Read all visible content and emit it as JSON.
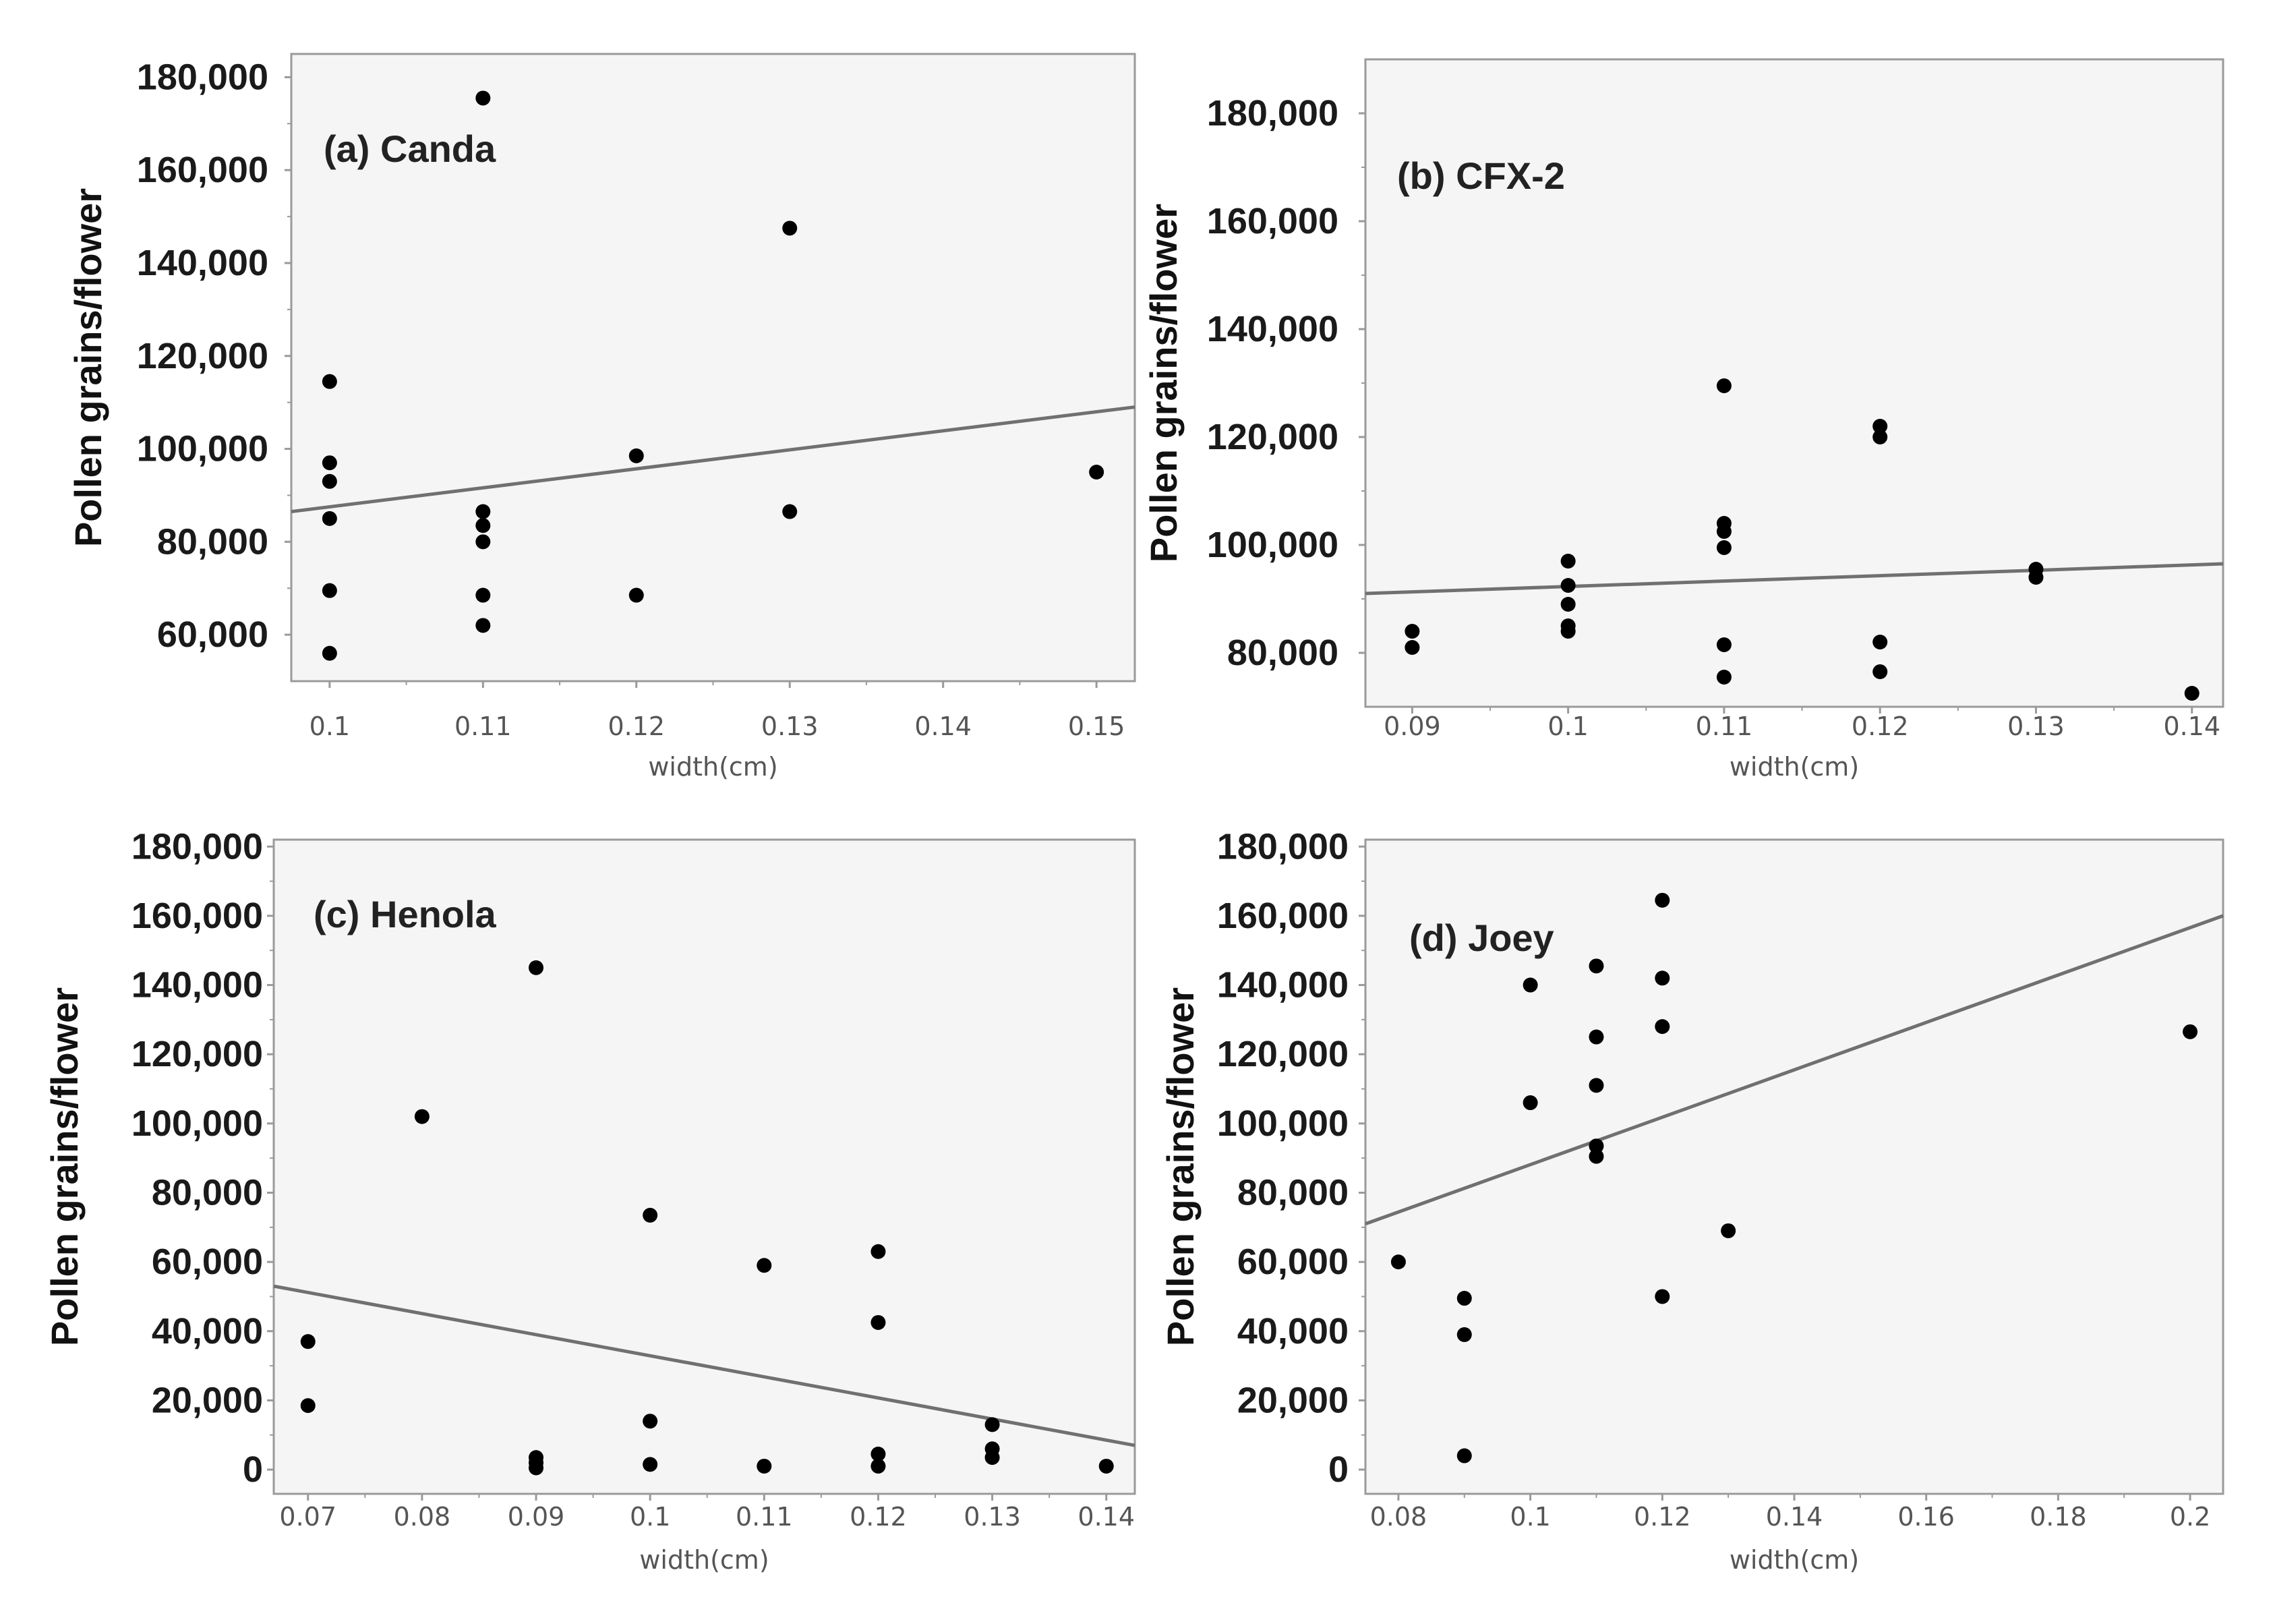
{
  "figure": {
    "background": "#ffffff",
    "panel_background": "#f5f5f5",
    "frame_color": "#9a9a9a",
    "point_color": "#000000",
    "fit_line_color": "#707070"
  },
  "chart_data": [
    {
      "type": "scatter",
      "title": "(a) Canda",
      "xlabel": "width(cm)",
      "ylabel": "Pollen grains/flower",
      "xlim": [
        0.0975,
        0.1525
      ],
      "ylim": [
        50000,
        185000
      ],
      "x_ticks": [
        0.1,
        0.11,
        0.12,
        0.13,
        0.14,
        0.15
      ],
      "x_tick_labels": [
        "0.1",
        "0.11",
        "0.12",
        "0.13",
        "0.14",
        "0.15"
      ],
      "y_ticks": [
        60000,
        80000,
        100000,
        120000,
        140000,
        160000,
        180000
      ],
      "y_tick_labels": [
        "60,000",
        "80,000",
        "100,000",
        "120,000",
        "140,000",
        "160,000",
        "180,000"
      ],
      "points": [
        [
          0.1,
          114500
        ],
        [
          0.1,
          97000
        ],
        [
          0.1,
          93000
        ],
        [
          0.1,
          85000
        ],
        [
          0.1,
          69500
        ],
        [
          0.1,
          56000
        ],
        [
          0.11,
          175500
        ],
        [
          0.11,
          86500
        ],
        [
          0.11,
          83500
        ],
        [
          0.11,
          80000
        ],
        [
          0.11,
          68500
        ],
        [
          0.11,
          62000
        ],
        [
          0.12,
          98500
        ],
        [
          0.12,
          68500
        ],
        [
          0.13,
          147500
        ],
        [
          0.13,
          86500
        ],
        [
          0.15,
          95000
        ]
      ],
      "fit_line": [
        [
          0.0975,
          86500
        ],
        [
          0.1525,
          109000
        ]
      ]
    },
    {
      "type": "scatter",
      "title": "(b) CFX-2",
      "xlabel": "width(cm)",
      "ylabel": "Pollen grains/flower",
      "xlim": [
        0.087,
        0.142
      ],
      "ylim": [
        70000,
        190000
      ],
      "x_ticks": [
        0.09,
        0.1,
        0.11,
        0.12,
        0.13,
        0.14
      ],
      "x_tick_labels": [
        "0.09",
        "0.1",
        "0.11",
        "0.12",
        "0.13",
        "0.14"
      ],
      "y_ticks": [
        80000,
        100000,
        120000,
        140000,
        160000,
        180000
      ],
      "y_tick_labels": [
        "80,000",
        "100,000",
        "120,000",
        "140,000",
        "160,000",
        "180,000"
      ],
      "points": [
        [
          0.09,
          84000
        ],
        [
          0.09,
          81000
        ],
        [
          0.1,
          97000
        ],
        [
          0.1,
          92500
        ],
        [
          0.1,
          89000
        ],
        [
          0.1,
          85000
        ],
        [
          0.1,
          84000
        ],
        [
          0.11,
          129500
        ],
        [
          0.11,
          104000
        ],
        [
          0.11,
          102500
        ],
        [
          0.11,
          99500
        ],
        [
          0.11,
          81500
        ],
        [
          0.11,
          75500
        ],
        [
          0.12,
          122000
        ],
        [
          0.12,
          120000
        ],
        [
          0.12,
          82000
        ],
        [
          0.12,
          76500
        ],
        [
          0.13,
          95500
        ],
        [
          0.13,
          94000
        ],
        [
          0.14,
          72500
        ]
      ],
      "fit_line": [
        [
          0.087,
          91000
        ],
        [
          0.142,
          96500
        ]
      ]
    },
    {
      "type": "scatter",
      "title": "(c) Henola",
      "xlabel": "width(cm)",
      "ylabel": "Pollen grains/flower",
      "xlim": [
        0.067,
        0.1425
      ],
      "ylim": [
        -7000,
        182000
      ],
      "x_ticks": [
        0.07,
        0.08,
        0.09,
        0.1,
        0.11,
        0.12,
        0.13,
        0.14
      ],
      "x_tick_labels": [
        "0.07",
        "0.08",
        "0.09",
        "0.1",
        "0.11",
        "0.12",
        "0.13",
        "0.14"
      ],
      "y_ticks": [
        0,
        20000,
        40000,
        60000,
        80000,
        100000,
        120000,
        140000,
        160000,
        180000
      ],
      "y_tick_labels": [
        "0",
        "20,000",
        "40,000",
        "60,000",
        "80,000",
        "100,000",
        "120,000",
        "140,000",
        "160,000",
        "180,000"
      ],
      "points": [
        [
          0.07,
          37000
        ],
        [
          0.07,
          18500
        ],
        [
          0.08,
          102000
        ],
        [
          0.09,
          145000
        ],
        [
          0.09,
          3500
        ],
        [
          0.09,
          2000
        ],
        [
          0.09,
          500
        ],
        [
          0.1,
          73500
        ],
        [
          0.1,
          14000
        ],
        [
          0.1,
          1500
        ],
        [
          0.11,
          59000
        ],
        [
          0.11,
          1000
        ],
        [
          0.12,
          63000
        ],
        [
          0.12,
          42500
        ],
        [
          0.12,
          4500
        ],
        [
          0.12,
          1000
        ],
        [
          0.13,
          13000
        ],
        [
          0.13,
          6000
        ],
        [
          0.13,
          3500
        ],
        [
          0.14,
          1000
        ]
      ],
      "fit_line": [
        [
          0.067,
          53000
        ],
        [
          0.1425,
          7000
        ]
      ]
    },
    {
      "type": "scatter",
      "title": "(d) Joey",
      "xlabel": "width(cm)",
      "ylabel": "Pollen grains/flower",
      "xlim": [
        0.075,
        0.205
      ],
      "ylim": [
        -7000,
        182000
      ],
      "x_ticks": [
        0.08,
        0.1,
        0.12,
        0.14,
        0.16,
        0.18,
        0.2
      ],
      "x_tick_labels": [
        "0.08",
        "0.1",
        "0.12",
        "0.14",
        "0.16",
        "0.18",
        "0.2"
      ],
      "y_ticks": [
        0,
        20000,
        40000,
        60000,
        80000,
        100000,
        120000,
        140000,
        160000,
        180000
      ],
      "y_tick_labels": [
        "0",
        "20,000",
        "40,000",
        "60,000",
        "80,000",
        "100,000",
        "120,000",
        "140,000",
        "160,000",
        "180,000"
      ],
      "points": [
        [
          0.08,
          60000
        ],
        [
          0.09,
          49500
        ],
        [
          0.09,
          39000
        ],
        [
          0.09,
          4000
        ],
        [
          0.1,
          140000
        ],
        [
          0.1,
          106000
        ],
        [
          0.11,
          145500
        ],
        [
          0.11,
          125000
        ],
        [
          0.11,
          111000
        ],
        [
          0.11,
          93500
        ],
        [
          0.11,
          90500
        ],
        [
          0.12,
          164500
        ],
        [
          0.12,
          142000
        ],
        [
          0.12,
          128000
        ],
        [
          0.12,
          50000
        ],
        [
          0.13,
          69000
        ],
        [
          0.2,
          126500
        ]
      ],
      "fit_line": [
        [
          0.075,
          71000
        ],
        [
          0.205,
          160000
        ]
      ]
    }
  ]
}
